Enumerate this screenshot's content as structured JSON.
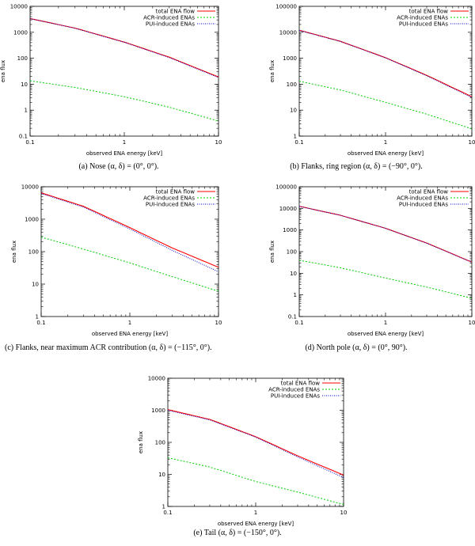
{
  "colors": {
    "total": "#ff0000",
    "acr": "#00cc00",
    "pui": "#0000cc",
    "axis": "#000000"
  },
  "chart_data": [
    {
      "id": "a",
      "type": "line",
      "ylabel": "ena flux",
      "xlabel": "observed ENA energy [keV]",
      "xscale": "log",
      "yscale": "log",
      "xlim": [
        0.1,
        10
      ],
      "ylim": [
        0.1,
        10000
      ],
      "xticks": [
        {
          "v": 0.1,
          "label": "0.1"
        },
        {
          "v": 1,
          "label": "1"
        },
        {
          "v": 10,
          "label": "10"
        }
      ],
      "yticks": [
        {
          "v": 0.1,
          "label": "0.1"
        },
        {
          "v": 1,
          "label": "1"
        },
        {
          "v": 10,
          "label": "10"
        },
        {
          "v": 100,
          "label": "100"
        },
        {
          "v": 1000,
          "label": "1000"
        },
        {
          "v": 10000,
          "label": "10000"
        }
      ],
      "series": [
        {
          "name": "total ENA flow",
          "key": "total",
          "dash": "none",
          "x": [
            0.1,
            0.3,
            1,
            3,
            10
          ],
          "y": [
            3400,
            1450,
            420,
            110,
            19
          ]
        },
        {
          "name": "ACR-induced ENAs",
          "key": "acr",
          "dash": "2,2",
          "x": [
            0.1,
            0.3,
            1,
            3,
            10
          ],
          "y": [
            13.5,
            7.5,
            3.3,
            1.3,
            0.38
          ]
        },
        {
          "name": "PUI-induced ENAs",
          "key": "pui",
          "dash": "1,1.5",
          "x": [
            0.1,
            0.3,
            1,
            3,
            10
          ],
          "y": [
            3350,
            1420,
            410,
            106,
            18
          ]
        }
      ],
      "caption": "(a) Nose (α, δ) = (0°, 0°)."
    },
    {
      "id": "b",
      "type": "line",
      "ylabel": "ena flux",
      "xlabel": "observed ENA energy [keV]",
      "xscale": "log",
      "yscale": "log",
      "xlim": [
        0.1,
        10
      ],
      "ylim": [
        1,
        100000
      ],
      "xticks": [
        {
          "v": 0.1,
          "label": "0.1"
        },
        {
          "v": 1,
          "label": "1"
        },
        {
          "v": 10,
          "label": "10"
        }
      ],
      "yticks": [
        {
          "v": 1,
          "label": "1"
        },
        {
          "v": 10,
          "label": "10"
        },
        {
          "v": 100,
          "label": "100"
        },
        {
          "v": 1000,
          "label": "1000"
        },
        {
          "v": 10000,
          "label": "10000"
        },
        {
          "v": 100000,
          "label": "100000"
        }
      ],
      "series": [
        {
          "name": "total ENA flow",
          "key": "total",
          "dash": "none",
          "x": [
            0.1,
            0.3,
            1,
            3,
            10
          ],
          "y": [
            12000,
            4500,
            1050,
            220,
            33
          ]
        },
        {
          "name": "ACR-induced ENAs",
          "key": "acr",
          "dash": "2,2",
          "x": [
            0.1,
            0.3,
            1,
            3,
            10
          ],
          "y": [
            130,
            60,
            20,
            7,
            1.9
          ]
        },
        {
          "name": "PUI-induced ENAs",
          "key": "pui",
          "dash": "1,1.5",
          "x": [
            0.1,
            0.3,
            1,
            3,
            10
          ],
          "y": [
            11800,
            4400,
            1030,
            210,
            31
          ]
        }
      ],
      "caption": "(b) Flanks, ring region (α, δ) = (−90°, 0°)."
    },
    {
      "id": "c",
      "type": "line",
      "ylabel": "ena flux",
      "xlabel": "observed ENA energy [keV]",
      "xscale": "log",
      "yscale": "log",
      "xlim": [
        0.1,
        10
      ],
      "ylim": [
        1,
        10000
      ],
      "xticks": [
        {
          "v": 0.1,
          "label": "0.1"
        },
        {
          "v": 1,
          "label": "1"
        },
        {
          "v": 10,
          "label": "10"
        }
      ],
      "yticks": [
        {
          "v": 1,
          "label": "1"
        },
        {
          "v": 10,
          "label": "10"
        },
        {
          "v": 100,
          "label": "100"
        },
        {
          "v": 1000,
          "label": "1000"
        },
        {
          "v": 10000,
          "label": "10000"
        }
      ],
      "series": [
        {
          "name": "total ENA flow",
          "key": "total",
          "dash": "none",
          "x": [
            0.1,
            0.3,
            1,
            3,
            10
          ],
          "y": [
            6500,
            2500,
            550,
            130,
            33
          ]
        },
        {
          "name": "ACR-induced ENAs",
          "key": "acr",
          "dash": "2,2",
          "x": [
            0.1,
            0.3,
            1,
            3,
            10
          ],
          "y": [
            280,
            120,
            45,
            17,
            6
          ]
        },
        {
          "name": "PUI-induced ENAs",
          "key": "pui",
          "dash": "1,1.5",
          "x": [
            0.1,
            0.3,
            1,
            3,
            10
          ],
          "y": [
            6200,
            2350,
            500,
            110,
            24
          ]
        }
      ],
      "caption": "(c) Flanks, near maximum ACR contribution (α, δ) = (−115°, 0°)."
    },
    {
      "id": "d",
      "type": "line",
      "ylabel": "ena flux",
      "xlabel": "observed ENA energy [keV]",
      "xscale": "log",
      "yscale": "log",
      "xlim": [
        0.1,
        10
      ],
      "ylim": [
        0.1,
        100000
      ],
      "xticks": [
        {
          "v": 0.1,
          "label": "0.1"
        },
        {
          "v": 1,
          "label": "1"
        },
        {
          "v": 10,
          "label": "10"
        }
      ],
      "yticks": [
        {
          "v": 0.1,
          "label": "0.1"
        },
        {
          "v": 1,
          "label": "1"
        },
        {
          "v": 10,
          "label": "10"
        },
        {
          "v": 100,
          "label": "100"
        },
        {
          "v": 1000,
          "label": "1000"
        },
        {
          "v": 10000,
          "label": "10000"
        },
        {
          "v": 100000,
          "label": "100000"
        }
      ],
      "series": [
        {
          "name": "total ENA flow",
          "key": "total",
          "dash": "none",
          "x": [
            0.1,
            0.3,
            1,
            3,
            10
          ],
          "y": [
            12500,
            4800,
            1200,
            250,
            33
          ]
        },
        {
          "name": "ACR-induced ENAs",
          "key": "acr",
          "dash": "2,2",
          "x": [
            0.1,
            0.3,
            1,
            3,
            10
          ],
          "y": [
            40,
            18,
            6,
            2.3,
            0.7
          ]
        },
        {
          "name": "PUI-induced ENAs",
          "key": "pui",
          "dash": "1,1.5",
          "x": [
            0.1,
            0.3,
            1,
            3,
            10
          ],
          "y": [
            12400,
            4750,
            1190,
            245,
            32
          ]
        }
      ],
      "caption": "(d) North pole (α, δ) = (0°, 90°)."
    },
    {
      "id": "e",
      "type": "line",
      "ylabel": "ena flux",
      "xlabel": "observed ENA energy [keV]",
      "xscale": "log",
      "yscale": "log",
      "xlim": [
        0.1,
        10
      ],
      "ylim": [
        1,
        10000
      ],
      "xticks": [
        {
          "v": 0.1,
          "label": "0.1"
        },
        {
          "v": 1,
          "label": "1"
        },
        {
          "v": 10,
          "label": "10"
        }
      ],
      "yticks": [
        {
          "v": 1,
          "label": "1"
        },
        {
          "v": 10,
          "label": "10"
        },
        {
          "v": 100,
          "label": "100"
        },
        {
          "v": 1000,
          "label": "1000"
        },
        {
          "v": 10000,
          "label": "10000"
        }
      ],
      "series": [
        {
          "name": "total ENA flow",
          "key": "total",
          "dash": "none",
          "x": [
            0.1,
            0.3,
            1,
            3,
            10
          ],
          "y": [
            1050,
            520,
            150,
            38,
            9.5
          ]
        },
        {
          "name": "ACR-induced ENAs",
          "key": "acr",
          "dash": "2,2",
          "x": [
            0.1,
            0.3,
            1,
            3,
            10
          ],
          "y": [
            33,
            17,
            6,
            2.8,
            1.15
          ]
        },
        {
          "name": "PUI-induced ENAs",
          "key": "pui",
          "dash": "1,1.5",
          "x": [
            0.1,
            0.3,
            1,
            3,
            10
          ],
          "y": [
            1000,
            500,
            145,
            35,
            8
          ]
        }
      ],
      "caption": "(e) Tail (α, δ) = (−150°, 0°)."
    }
  ]
}
